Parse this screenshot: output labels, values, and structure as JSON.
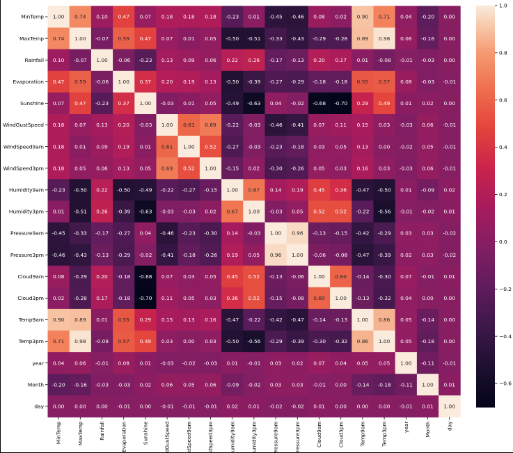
{
  "chart_data": {
    "type": "heatmap",
    "title": "",
    "xlabel": "",
    "ylabel": "",
    "labels": [
      "MinTemp",
      "MaxTemp",
      "Rainfall",
      "Evaporation",
      "Sunshine",
      "WindGustSpeed",
      "WindSpeed9am",
      "WindSpeed3pm",
      "Humidity9am",
      "Humidity3pm",
      "Pressure9am",
      "Pressure3pm",
      "Cloud9am",
      "Cloud3pm",
      "Temp9am",
      "Temp3pm",
      "year",
      "Month",
      "day"
    ],
    "matrix": [
      [
        1.0,
        0.74,
        0.1,
        0.47,
        0.07,
        0.18,
        0.18,
        0.18,
        -0.23,
        0.01,
        -0.45,
        -0.46,
        0.08,
        0.02,
        0.9,
        0.71,
        0.04,
        -0.2,
        0.0
      ],
      [
        0.74,
        1.0,
        -0.07,
        0.59,
        0.47,
        0.07,
        0.01,
        0.05,
        -0.5,
        -0.51,
        -0.33,
        -0.43,
        -0.29,
        -0.28,
        0.89,
        0.98,
        0.06,
        -0.16,
        0.0
      ],
      [
        0.1,
        -0.07,
        1.0,
        -0.06,
        -0.23,
        0.13,
        0.09,
        0.06,
        0.22,
        0.26,
        -0.17,
        -0.13,
        0.2,
        0.17,
        0.01,
        -0.08,
        -0.01,
        -0.03,
        0.0
      ],
      [
        0.47,
        0.59,
        -0.06,
        1.0,
        0.37,
        0.2,
        0.19,
        0.13,
        -0.5,
        -0.39,
        -0.27,
        -0.29,
        -0.18,
        -0.18,
        0.55,
        0.57,
        0.08,
        -0.03,
        -0.01
      ],
      [
        0.07,
        0.47,
        -0.23,
        0.37,
        1.0,
        -0.03,
        0.01,
        0.05,
        -0.49,
        -0.63,
        0.04,
        -0.02,
        -0.68,
        -0.7,
        0.29,
        0.49,
        0.01,
        0.02,
        -0.0
      ],
      [
        0.18,
        0.07,
        0.13,
        0.2,
        -0.03,
        1.0,
        0.61,
        0.69,
        -0.22,
        -0.03,
        -0.46,
        -0.41,
        0.07,
        0.11,
        0.15,
        0.03,
        -0.03,
        0.06,
        -0.01
      ],
      [
        0.18,
        0.01,
        0.09,
        0.19,
        0.01,
        0.61,
        1.0,
        0.52,
        -0.27,
        -0.03,
        -0.23,
        -0.18,
        0.03,
        0.05,
        0.13,
        0.0,
        -0.02,
        0.05,
        -0.01
      ],
      [
        0.18,
        0.05,
        0.06,
        0.13,
        0.05,
        0.69,
        0.52,
        1.0,
        -0.15,
        0.02,
        -0.3,
        -0.26,
        0.05,
        0.03,
        0.16,
        0.03,
        -0.03,
        0.06,
        -0.01
      ],
      [
        -0.23,
        -0.5,
        0.22,
        -0.5,
        -0.49,
        -0.22,
        -0.27,
        -0.15,
        1.0,
        0.67,
        0.14,
        0.19,
        0.45,
        0.36,
        -0.47,
        -0.5,
        0.01,
        -0.09,
        0.02
      ],
      [
        0.01,
        -0.51,
        0.26,
        -0.39,
        -0.63,
        -0.03,
        -0.03,
        0.02,
        0.67,
        1.0,
        -0.03,
        0.05,
        0.52,
        0.52,
        -0.22,
        -0.56,
        -0.01,
        -0.02,
        0.01
      ],
      [
        -0.45,
        -0.33,
        -0.17,
        -0.27,
        0.04,
        -0.46,
        -0.23,
        -0.3,
        0.14,
        -0.03,
        1.0,
        0.96,
        -0.13,
        -0.15,
        -0.42,
        -0.29,
        0.03,
        0.03,
        -0.02
      ],
      [
        -0.46,
        -0.43,
        -0.13,
        -0.29,
        -0.02,
        -0.41,
        -0.18,
        -0.26,
        0.19,
        0.05,
        0.96,
        1.0,
        -0.06,
        -0.08,
        -0.47,
        -0.39,
        0.02,
        0.03,
        -0.02
      ],
      [
        0.08,
        -0.29,
        0.2,
        -0.18,
        -0.68,
        0.07,
        0.03,
        0.05,
        0.45,
        0.52,
        -0.13,
        -0.06,
        1.0,
        0.6,
        -0.14,
        -0.3,
        0.07,
        -0.01,
        0.01
      ],
      [
        0.02,
        -0.28,
        0.17,
        -0.18,
        -0.7,
        0.11,
        0.05,
        0.03,
        0.36,
        0.52,
        -0.15,
        -0.08,
        0.6,
        1.0,
        -0.13,
        -0.32,
        0.04,
        -0.0,
        -0.0
      ],
      [
        0.9,
        0.89,
        0.01,
        0.55,
        0.29,
        0.15,
        0.13,
        0.16,
        -0.47,
        -0.22,
        -0.42,
        -0.47,
        -0.14,
        -0.13,
        1.0,
        0.86,
        0.05,
        -0.14,
        0.0
      ],
      [
        0.71,
        0.98,
        -0.08,
        0.57,
        0.49,
        0.03,
        0.0,
        0.03,
        -0.5,
        -0.56,
        -0.29,
        -0.39,
        -0.3,
        -0.32,
        0.86,
        1.0,
        0.05,
        -0.18,
        -0.0
      ],
      [
        0.04,
        0.06,
        -0.01,
        0.08,
        0.01,
        -0.03,
        -0.02,
        -0.03,
        0.01,
        -0.01,
        0.03,
        0.02,
        0.07,
        0.04,
        0.05,
        0.05,
        1.0,
        -0.11,
        -0.01
      ],
      [
        -0.2,
        -0.16,
        -0.03,
        -0.03,
        0.02,
        0.06,
        0.05,
        0.06,
        -0.09,
        -0.02,
        0.03,
        0.03,
        -0.01,
        -0.0,
        -0.14,
        -0.18,
        -0.11,
        1.0,
        0.01
      ],
      [
        0.0,
        0.0,
        0.0,
        -0.01,
        -0.0,
        -0.01,
        -0.01,
        -0.01,
        0.02,
        0.01,
        -0.02,
        -0.02,
        0.01,
        -0.0,
        0.0,
        -0.0,
        -0.01,
        0.01,
        1.0
      ]
    ],
    "vmin": -0.7,
    "vmax": 1.0,
    "colormap": "rocket",
    "annotation_format": "0.00",
    "colorbar_ticks": [
      1.0,
      0.8,
      0.6,
      0.4,
      0.2,
      0.0,
      -0.2,
      -0.4,
      -0.6
    ],
    "colorbar_tick_labels": [
      "1.0",
      "0.8",
      "0.6",
      "0.4",
      "0.2",
      "0.0",
      "−0.2",
      "−0.4",
      "−0.6"
    ],
    "grid": false,
    "legend": "colorbar-right"
  }
}
